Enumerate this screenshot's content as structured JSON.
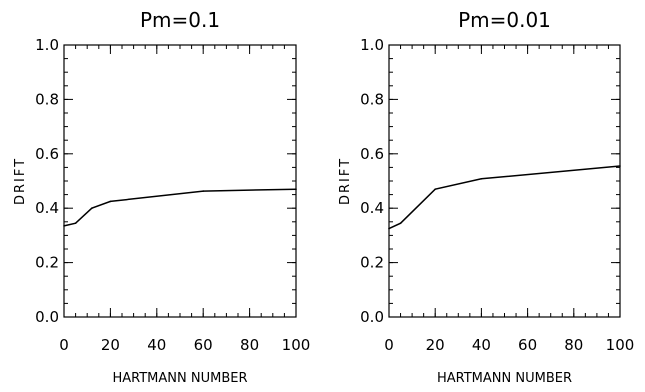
{
  "chart_data": [
    {
      "type": "line",
      "title": "Pm=0.1",
      "xlabel": "HARTMANN NUMBER",
      "ylabel": "DRIFT",
      "xlim": [
        0,
        100
      ],
      "ylim": [
        0,
        1.0
      ],
      "xticks": [
        "0",
        "20",
        "40",
        "60",
        "80",
        "100"
      ],
      "yticks": [
        "0.0",
        "0.2",
        "0.4",
        "0.6",
        "0.8",
        "1.0"
      ],
      "grid": false,
      "series": [
        {
          "x": [
            0,
            5,
            12,
            20,
            60,
            100
          ],
          "y": [
            0.335,
            0.345,
            0.4,
            0.425,
            0.463,
            0.47
          ]
        }
      ]
    },
    {
      "type": "line",
      "title": "Pm=0.01",
      "xlabel": "HARTMANN NUMBER",
      "ylabel": "DRIFT",
      "xlim": [
        0,
        100
      ],
      "ylim": [
        0,
        1.0
      ],
      "xticks": [
        "0",
        "20",
        "40",
        "60",
        "80",
        "100"
      ],
      "yticks": [
        "0.0",
        "0.2",
        "0.4",
        "0.6",
        "0.8",
        "1.0"
      ],
      "grid": false,
      "series": [
        {
          "x": [
            0,
            5,
            20,
            40,
            100
          ],
          "y": [
            0.325,
            0.345,
            0.47,
            0.508,
            0.555
          ]
        }
      ]
    }
  ]
}
